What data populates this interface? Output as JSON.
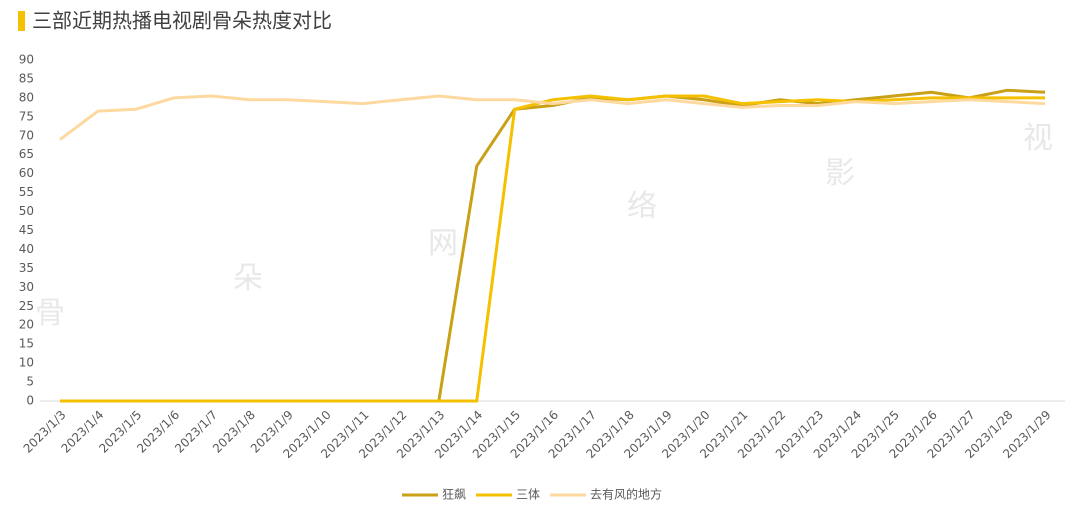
{
  "chart_data": {
    "type": "line",
    "title": "三部近期热播电视剧骨朵热度对比",
    "watermark": [
      "骨",
      "朵",
      "网",
      "络",
      "影",
      "视"
    ],
    "categories": [
      "2023/1/3",
      "2023/1/4",
      "2023/1/5",
      "2023/1/6",
      "2023/1/7",
      "2023/1/8",
      "2023/1/9",
      "2023/1/10",
      "2023/1/11",
      "2023/1/12",
      "2023/1/13",
      "2023/1/14",
      "2023/1/15",
      "2023/1/16",
      "2023/1/17",
      "2023/1/18",
      "2023/1/19",
      "2023/1/20",
      "2023/1/21",
      "2023/1/22",
      "2023/1/23",
      "2023/1/24",
      "2023/1/25",
      "2023/1/26",
      "2023/1/27",
      "2023/1/28",
      "2023/1/29"
    ],
    "series": [
      {
        "name": "狂飙",
        "color": "#c9a016",
        "values": [
          0,
          0,
          0,
          0,
          0,
          0,
          0,
          0,
          0,
          0,
          0,
          62,
          77,
          78,
          80,
          79.5,
          80.5,
          79.5,
          78,
          79.5,
          78.5,
          79.5,
          80.5,
          81.5,
          80,
          82,
          81.5
        ]
      },
      {
        "name": "三体",
        "color": "#f5c000",
        "values": [
          0,
          0,
          0,
          0,
          0,
          0,
          0,
          0,
          0,
          0,
          0,
          0,
          77,
          79.5,
          80.5,
          79.5,
          80.5,
          80.5,
          78.5,
          79,
          79.5,
          79,
          79.5,
          80,
          80,
          80,
          80
        ]
      },
      {
        "name": "去有风的地方",
        "color": "#fdd9a0",
        "values": [
          69,
          76.5,
          77,
          80,
          80.5,
          79.5,
          79.5,
          79,
          78.5,
          79.5,
          80.5,
          79.5,
          79.5,
          78.5,
          79.5,
          78.5,
          79.5,
          78.5,
          77.5,
          78,
          78,
          79,
          78.5,
          79,
          79.5,
          79,
          78.5
        ]
      }
    ],
    "ylim": [
      0,
      90
    ],
    "yticks": [
      0,
      5,
      10,
      15,
      20,
      25,
      30,
      35,
      40,
      45,
      50,
      55,
      60,
      65,
      70,
      75,
      80,
      85,
      90
    ],
    "grid": false,
    "legend": "bottom"
  }
}
